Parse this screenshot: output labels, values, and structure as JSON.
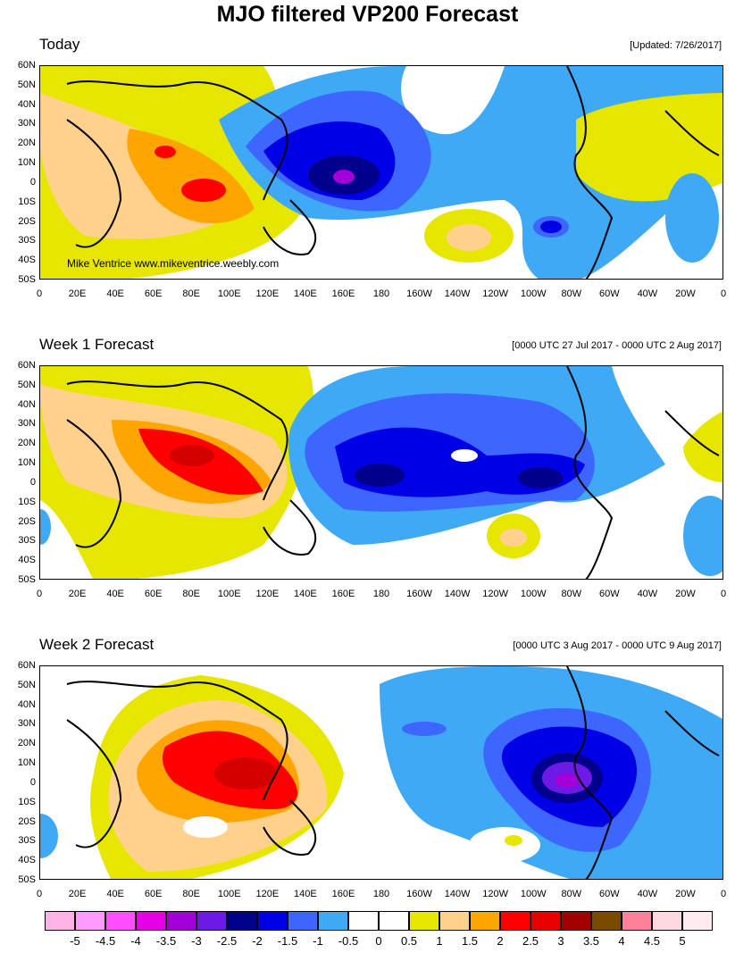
{
  "title": "MJO filtered VP200 Forecast",
  "credit": "Mike Ventrice www.mikeventrice.weebly.com",
  "lat_labels": [
    "60N",
    "50N",
    "40N",
    "30N",
    "20N",
    "10N",
    "0",
    "10S",
    "20S",
    "30S",
    "40S",
    "50S"
  ],
  "lon_labels": [
    "0",
    "20E",
    "40E",
    "60E",
    "80E",
    "100E",
    "120E",
    "140E",
    "160E",
    "180",
    "160W",
    "140W",
    "120W",
    "100W",
    "80W",
    "60W",
    "40W",
    "20W",
    "0"
  ],
  "panels": [
    {
      "title": "Today",
      "note": "[Updated: 7/26/2017]"
    },
    {
      "title": "Week 1 Forecast",
      "note": "[0000 UTC 27 Jul 2017 - 0000 UTC 2 Aug 2017]"
    },
    {
      "title": "Week 2 Forecast",
      "note": "[0000 UTC 3 Aug 2017 - 0000 UTC 9 Aug 2017]"
    }
  ],
  "colorbar": {
    "labels": [
      "-5",
      "-4.5",
      "-4",
      "-3.5",
      "-3",
      "-2.5",
      "-2",
      "-1.5",
      "-1",
      "-0.5",
      "0",
      "0.5",
      "1",
      "1.5",
      "2",
      "2.5",
      "3",
      "3.5",
      "4",
      "4.5",
      "5"
    ],
    "colors": [
      "#ffb3e6",
      "#ff99ff",
      "#ff4dff",
      "#e600e6",
      "#a300d9",
      "#6e1ae6",
      "#00008c",
      "#0000e6",
      "#3d66ff",
      "#3fa9f5",
      "#ffffff",
      "#ffffff",
      "#e6e600",
      "#ffd18c",
      "#ffa500",
      "#ff0000",
      "#e60000",
      "#a30000",
      "#7a4a00",
      "#ff8099",
      "#ffd9e0",
      "#ffebf0"
    ]
  },
  "palette": {
    "blue_light": "#3fa9f5",
    "blue_mid": "#3d66ff",
    "blue": "#0000e6",
    "blue_dark": "#00008c",
    "purple": "#a300d9",
    "yellow": "#e6e600",
    "peach": "#ffd18c",
    "orange": "#ffa500",
    "red": "#ff0000",
    "darkred": "#d40000"
  }
}
